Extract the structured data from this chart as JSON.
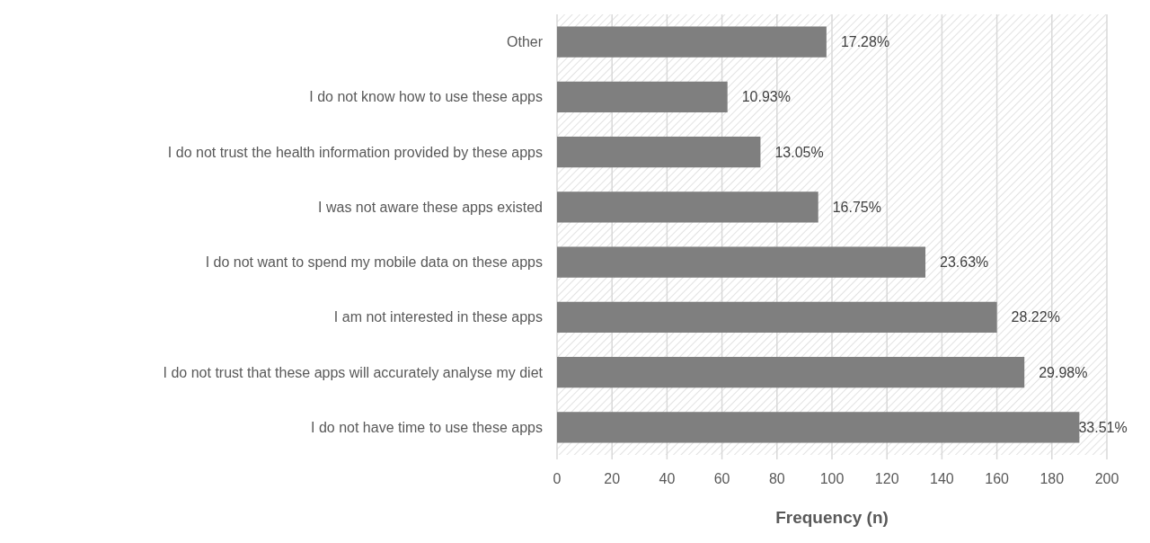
{
  "chart_data": {
    "type": "bar",
    "orientation": "horizontal",
    "xlabel": "Frequency (n)",
    "categories": [
      "Other",
      "I do not know how to use these apps",
      "I do not trust the health information provided by these apps",
      "I was not aware these apps existed",
      "I do not want to spend my mobile data on these apps",
      "I am not interested in these apps",
      "I do not trust that these apps will accurately analyse my diet",
      "I do not have time to use these apps"
    ],
    "values": [
      98,
      62,
      74,
      95,
      134,
      160,
      170,
      190
    ],
    "annotations": [
      {
        "text": "17.28%",
        "x": 98,
        "y": "Other"
      },
      {
        "text": "10.93%",
        "x": 62,
        "y": "I do not know how to use these apps"
      },
      {
        "text": "13.05%",
        "x": 74,
        "y": "I do not trust the health information provided by these apps"
      },
      {
        "text": "16.75%",
        "x": 95,
        "y": "I was not aware these apps existed"
      },
      {
        "text": "23.63%",
        "x": 134,
        "y": "I do not want to spend my mobile data on these apps"
      },
      {
        "text": "28.22%",
        "x": 160,
        "y": "I am not interested in these apps"
      },
      {
        "text": "29.98%",
        "x": 170,
        "y": "I do not trust that these apps will accurately analyse my diet"
      },
      {
        "text": "33.51%",
        "x": 190,
        "y": "I do not have time to use these apps"
      }
    ],
    "color": "#7f7f7f",
    "xlim": [
      0,
      200
    ],
    "xticks": [
      0,
      20,
      40,
      60,
      80,
      100,
      120,
      140,
      160,
      180,
      200
    ],
    "grid": "x"
  }
}
